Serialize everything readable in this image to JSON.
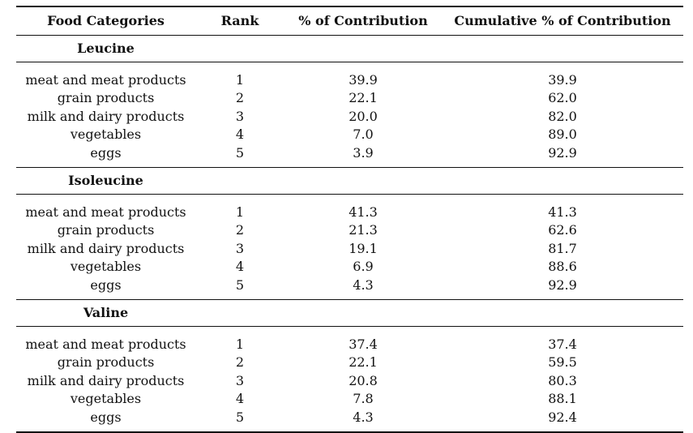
{
  "table": {
    "headers": [
      "Food Categories",
      "Rank",
      "% of Contribution",
      "Cumulative % of Contribution"
    ],
    "groups": [
      {
        "title": "Leucine",
        "rows": [
          [
            "meat and meat products",
            "1",
            "39.9",
            "39.9"
          ],
          [
            "grain products",
            "2",
            "22.1",
            "62.0"
          ],
          [
            "milk and dairy products",
            "3",
            "20.0",
            "82.0"
          ],
          [
            "vegetables",
            "4",
            "7.0",
            "89.0"
          ],
          [
            "eggs",
            "5",
            "3.9",
            "92.9"
          ]
        ]
      },
      {
        "title": "Isoleucine",
        "rows": [
          [
            "meat and meat products",
            "1",
            "41.3",
            "41.3"
          ],
          [
            "grain products",
            "2",
            "21.3",
            "62.6"
          ],
          [
            "milk and dairy products",
            "3",
            "19.1",
            "81.7"
          ],
          [
            "vegetables",
            "4",
            "6.9",
            "88.6"
          ],
          [
            "eggs",
            "5",
            "4.3",
            "92.9"
          ]
        ]
      },
      {
        "title": "Valine",
        "rows": [
          [
            "meat and meat products",
            "1",
            "37.4",
            "37.4"
          ],
          [
            "grain products",
            "2",
            "22.1",
            "59.5"
          ],
          [
            "milk and dairy products",
            "3",
            "20.8",
            "80.3"
          ],
          [
            "vegetables",
            "4",
            "7.8",
            "88.1"
          ],
          [
            "eggs",
            "5",
            "4.3",
            "92.4"
          ]
        ]
      }
    ]
  }
}
